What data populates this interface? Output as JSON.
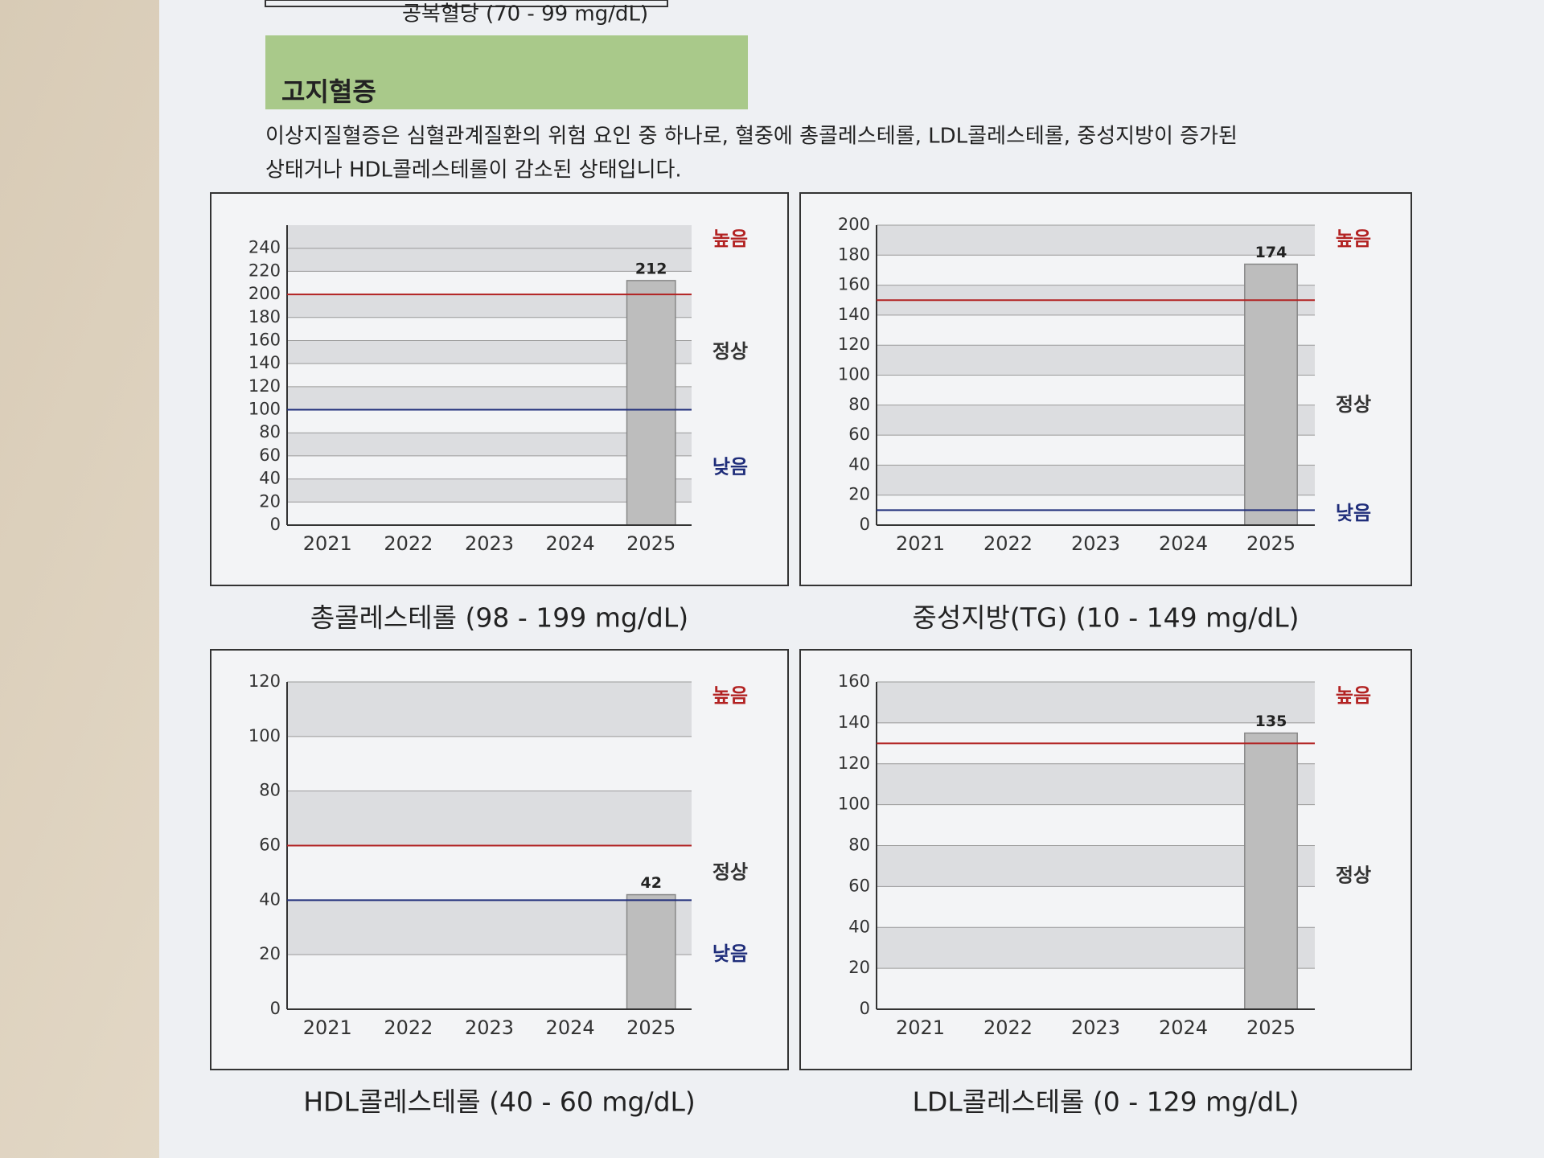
{
  "section": {
    "previous_caption": "공복혈당 (70 - 99 mg/dL)",
    "title": "고지혈증",
    "description": [
      "이상지질혈증은 심혈관계질환의 위험 요인 중 하나로, 혈중에 총콜레스테롤, LDL콜레스테롤, 중성지방이 증가된",
      "상태거나 HDL콜레스테롤이 감소된 상태입니다."
    ]
  },
  "chart_data": [
    {
      "type": "bar",
      "title": "총콜레스테롤 (98 - 199 mg/dL)",
      "categories": [
        "2021",
        "2022",
        "2023",
        "2024",
        "2025"
      ],
      "values": [
        null,
        null,
        null,
        null,
        212
      ],
      "color": "#bdbdbd",
      "ylim": [
        0,
        260
      ],
      "yticks": [
        0,
        20,
        40,
        60,
        80,
        100,
        120,
        140,
        160,
        180,
        200,
        220,
        240
      ],
      "grid": true,
      "limits": [
        {
          "value": 200,
          "color": "#b22222"
        },
        {
          "value": 100,
          "color": "#1f2d7a"
        }
      ],
      "zone_labels": {
        "high": "높음",
        "normal": "정상",
        "low": "낮음"
      }
    },
    {
      "type": "bar",
      "title": "중성지방(TG) (10 - 149 mg/dL)",
      "categories": [
        "2021",
        "2022",
        "2023",
        "2024",
        "2025"
      ],
      "values": [
        null,
        null,
        null,
        null,
        174
      ],
      "color": "#bdbdbd",
      "ylim": [
        0,
        200
      ],
      "yticks": [
        0,
        20,
        40,
        60,
        80,
        100,
        120,
        140,
        160,
        180,
        200
      ],
      "grid": true,
      "limits": [
        {
          "value": 150,
          "color": "#b22222"
        },
        {
          "value": 10,
          "color": "#1f2d7a"
        }
      ],
      "zone_labels": {
        "high": "높음",
        "normal": "정상",
        "low": "낮음"
      }
    },
    {
      "type": "bar",
      "title": "HDL콜레스테롤 (40 - 60 mg/dL)",
      "categories": [
        "2021",
        "2022",
        "2023",
        "2024",
        "2025"
      ],
      "values": [
        null,
        null,
        null,
        null,
        42
      ],
      "color": "#bdbdbd",
      "ylim": [
        0,
        120
      ],
      "yticks": [
        0,
        20,
        40,
        60,
        80,
        100,
        120
      ],
      "grid": true,
      "limits": [
        {
          "value": 60,
          "color": "#b22222"
        },
        {
          "value": 40,
          "color": "#1f2d7a"
        }
      ],
      "zone_labels": {
        "high": "높음",
        "normal": "정상",
        "low": "낮음"
      }
    },
    {
      "type": "bar",
      "title": "LDL콜레스테롤 (0 - 129 mg/dL)",
      "categories": [
        "2021",
        "2022",
        "2023",
        "2024",
        "2025"
      ],
      "values": [
        null,
        null,
        null,
        null,
        135
      ],
      "color": "#bdbdbd",
      "ylim": [
        0,
        160
      ],
      "yticks": [
        0,
        20,
        40,
        60,
        80,
        100,
        120,
        140,
        160
      ],
      "grid": true,
      "limits": [
        {
          "value": 130,
          "color": "#b22222"
        }
      ],
      "zone_labels": {
        "high": "높음",
        "normal": "정상"
      }
    }
  ]
}
